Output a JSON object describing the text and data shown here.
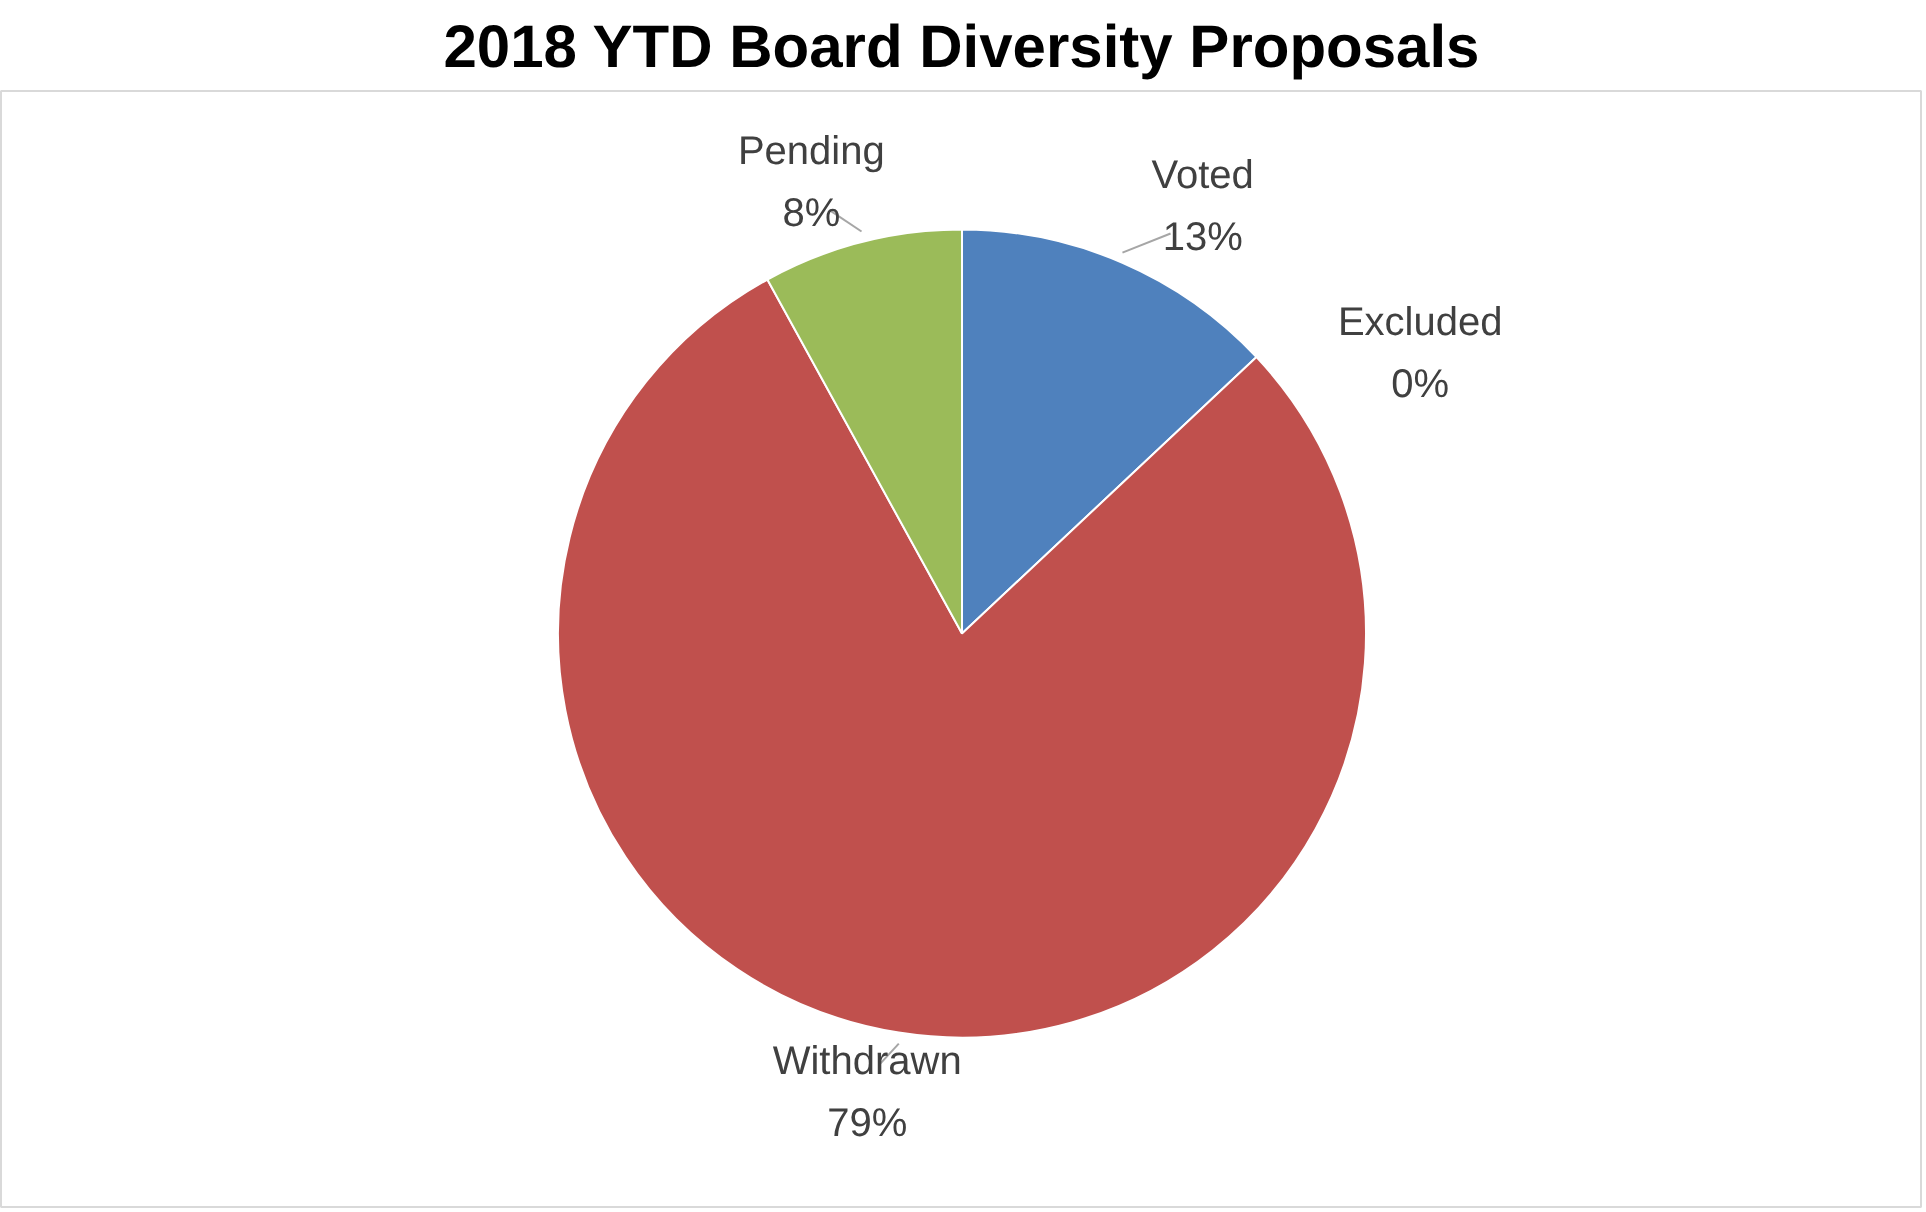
{
  "chart_data": {
    "type": "pie",
    "title": "2018 YTD Board Diversity Proposals",
    "categories": [
      "Voted",
      "Excluded",
      "Withdrawn",
      "Pending"
    ],
    "values": [
      13,
      0,
      79,
      8
    ],
    "value_labels": [
      "13%",
      "0%",
      "79%",
      "8%"
    ],
    "colors": [
      "#4f81bd",
      "#8064a2",
      "#c0504d",
      "#9bbb59"
    ],
    "legend": false
  }
}
